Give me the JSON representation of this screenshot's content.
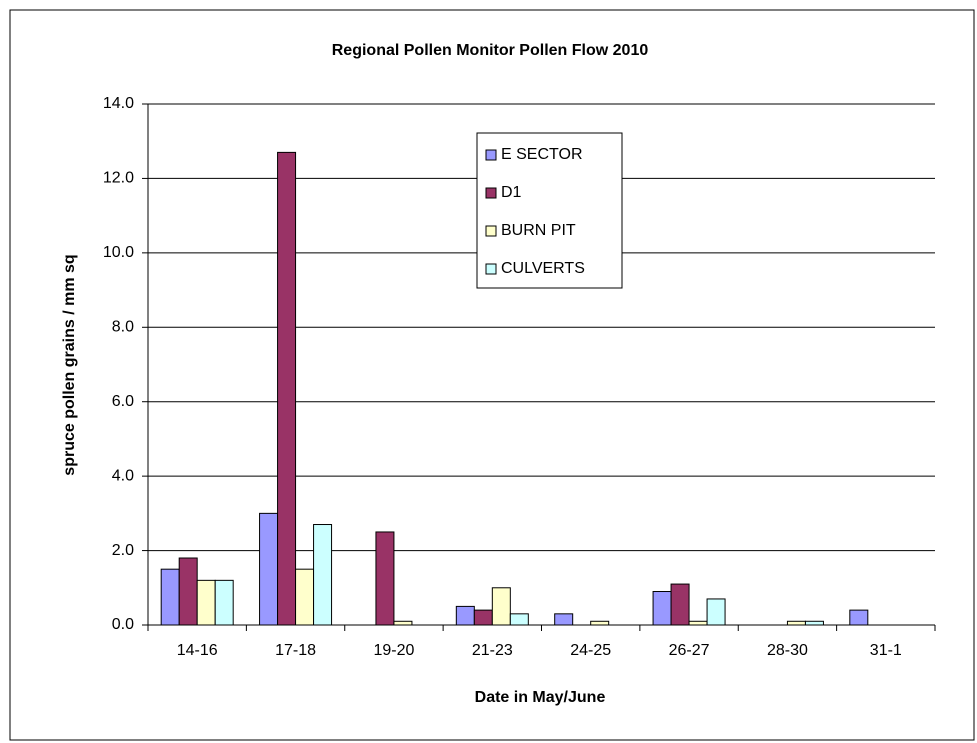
{
  "chart_data": {
    "type": "bar",
    "title": "Regional Pollen Monitor Pollen Flow 2010",
    "x_label": "Date in May/June",
    "y_label": "spruce pollen grains / mm sq",
    "categories": [
      "14-16",
      "17-18",
      "19-20",
      "21-23",
      "24-25",
      "26-27",
      "28-30",
      "31-1"
    ],
    "series": [
      {
        "name": "E SECTOR",
        "color": "#9999ff",
        "values": [
          1.5,
          3.0,
          0,
          0.5,
          0.3,
          0.9,
          0,
          0.4
        ]
      },
      {
        "name": "D1",
        "color": "#993366",
        "values": [
          1.8,
          12.7,
          2.5,
          0.4,
          0,
          1.1,
          0,
          0
        ]
      },
      {
        "name": "BURN PIT",
        "color": "#ffffcc",
        "values": [
          1.2,
          1.5,
          0.1,
          1.0,
          0.1,
          0.1,
          0.1,
          0
        ]
      },
      {
        "name": "CULVERTS",
        "color": "#ccffff",
        "values": [
          1.2,
          2.7,
          0,
          0.3,
          0,
          0.7,
          0.1,
          0
        ]
      }
    ],
    "ylim": [
      0,
      14
    ],
    "yticks": [
      {
        "value": 0,
        "label": "0.0"
      },
      {
        "value": 2,
        "label": "2.0"
      },
      {
        "value": 4,
        "label": "4.0"
      },
      {
        "value": 6,
        "label": "6.0"
      },
      {
        "value": 8,
        "label": "8.0"
      },
      {
        "value": 10,
        "label": "10.0"
      },
      {
        "value": 12,
        "label": "12.0"
      },
      {
        "value": 14,
        "label": "14.0"
      }
    ],
    "grid": true
  }
}
